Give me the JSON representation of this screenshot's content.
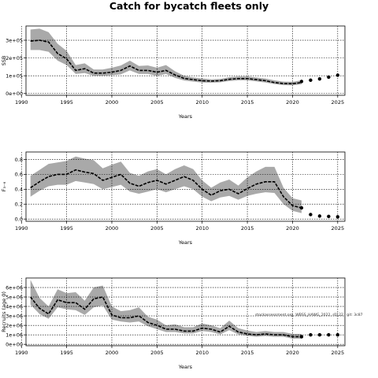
{
  "title": "Catch for bycatch fleets only",
  "annotation": "stockassessment.org, WBSS_HAWG_2022, r0122 , git: 3c87",
  "colors": {
    "band": "#a9a9a9",
    "line": "#000000",
    "grid": "#000000"
  },
  "chart_data": [
    {
      "type": "line",
      "name": "ssb",
      "ylabel": "SSB",
      "xlabel": "Years",
      "xlim": [
        1990.5,
        2025.8
      ],
      "ylim": [
        -10000,
        380000
      ],
      "xticks": [
        1990,
        1995,
        2000,
        2005,
        2010,
        2015,
        2020,
        2025
      ],
      "yticks": [
        0,
        100000,
        200000,
        300000
      ],
      "ytick_labels": [
        "0e+00",
        "1e+05",
        "2e+05",
        "3e+05"
      ],
      "grid": true,
      "x": [
        1991,
        1992,
        1993,
        1994,
        1995,
        1996,
        1997,
        1998,
        1999,
        2000,
        2001,
        2002,
        2003,
        2004,
        2005,
        2006,
        2007,
        2008,
        2009,
        2010,
        2011,
        2012,
        2013,
        2014,
        2015,
        2016,
        2017,
        2018,
        2019,
        2020,
        2021
      ],
      "y": [
        295000,
        300000,
        290000,
        225000,
        195000,
        130000,
        140000,
        115000,
        115000,
        120000,
        130000,
        155000,
        130000,
        130000,
        120000,
        130000,
        105000,
        85000,
        78000,
        72000,
        70000,
        72000,
        80000,
        84000,
        84000,
        78000,
        72000,
        62000,
        56000,
        55000,
        62000
      ],
      "lower": [
        245000,
        245000,
        235000,
        185000,
        160000,
        110000,
        115000,
        100000,
        100000,
        103000,
        108000,
        130000,
        110000,
        110000,
        100000,
        110000,
        88000,
        73000,
        67000,
        62000,
        61000,
        63000,
        70000,
        74000,
        74000,
        68000,
        62000,
        53000,
        47000,
        46000,
        52000
      ],
      "upper": [
        360000,
        365000,
        345000,
        280000,
        240000,
        160000,
        170000,
        135000,
        135000,
        145000,
        158000,
        185000,
        155000,
        158000,
        145000,
        160000,
        125000,
        100000,
        90000,
        85000,
        80000,
        82000,
        92000,
        96000,
        96000,
        90000,
        84000,
        74000,
        67000,
        66000,
        74000
      ],
      "forecast_x": [
        2021,
        2022,
        2023,
        2024,
        2025
      ],
      "forecast_y": [
        68000,
        75000,
        82000,
        92000,
        103000
      ]
    },
    {
      "type": "line",
      "name": "fbar",
      "ylabel": "F₃₋₆",
      "xlabel": "Years",
      "xlim": [
        1990.5,
        2025.8
      ],
      "ylim": [
        -0.03,
        0.9
      ],
      "xticks": [
        1990,
        1995,
        2000,
        2005,
        2010,
        2015,
        2020,
        2025
      ],
      "yticks": [
        0.0,
        0.2,
        0.4,
        0.6,
        0.8
      ],
      "ytick_labels": [
        "0.0",
        "0.2",
        "0.4",
        "0.6",
        "0.8"
      ],
      "grid": true,
      "x": [
        1991,
        1992,
        1993,
        1994,
        1995,
        1996,
        1997,
        1998,
        1999,
        2000,
        2001,
        2002,
        2003,
        2004,
        2005,
        2006,
        2007,
        2008,
        2009,
        2010,
        2011,
        2012,
        2013,
        2014,
        2015,
        2016,
        2017,
        2018,
        2019,
        2020,
        2021
      ],
      "y": [
        0.42,
        0.5,
        0.57,
        0.6,
        0.6,
        0.66,
        0.63,
        0.61,
        0.52,
        0.56,
        0.6,
        0.48,
        0.44,
        0.49,
        0.52,
        0.47,
        0.52,
        0.57,
        0.52,
        0.4,
        0.32,
        0.38,
        0.4,
        0.34,
        0.41,
        0.47,
        0.5,
        0.5,
        0.3,
        0.18,
        0.15
      ],
      "lower": [
        0.3,
        0.38,
        0.44,
        0.46,
        0.46,
        0.51,
        0.49,
        0.47,
        0.4,
        0.43,
        0.46,
        0.37,
        0.34,
        0.37,
        0.4,
        0.36,
        0.4,
        0.44,
        0.4,
        0.3,
        0.24,
        0.29,
        0.31,
        0.26,
        0.31,
        0.34,
        0.36,
        0.35,
        0.2,
        0.11,
        0.08
      ],
      "upper": [
        0.58,
        0.66,
        0.74,
        0.76,
        0.78,
        0.84,
        0.81,
        0.79,
        0.68,
        0.73,
        0.77,
        0.62,
        0.58,
        0.64,
        0.67,
        0.6,
        0.67,
        0.72,
        0.67,
        0.52,
        0.42,
        0.49,
        0.53,
        0.45,
        0.56,
        0.64,
        0.7,
        0.7,
        0.42,
        0.28,
        0.25
      ],
      "forecast_x": [
        2021,
        2022,
        2023,
        2024,
        2025
      ],
      "forecast_y": [
        0.15,
        0.06,
        0.04,
        0.035,
        0.03
      ]
    },
    {
      "type": "line",
      "name": "recruits",
      "ylabel": "Recruits (age 0)",
      "xlabel": "Years",
      "xlim": [
        1990.5,
        2025.8
      ],
      "ylim": [
        -150000,
        7000000
      ],
      "xticks": [
        1990,
        1995,
        2000,
        2005,
        2010,
        2015,
        2020,
        2025
      ],
      "yticks": [
        0,
        1000000,
        2000000,
        3000000,
        4000000,
        5000000,
        6000000
      ],
      "ytick_labels": [
        "0e+00",
        "1e+06",
        "2e+06",
        "3e+06",
        "4e+06",
        "5e+06",
        "6e+06"
      ],
      "grid": true,
      "x": [
        1991,
        1992,
        1993,
        1994,
        1995,
        1996,
        1997,
        1998,
        1999,
        2000,
        2001,
        2002,
        2003,
        2004,
        2005,
        2006,
        2007,
        2008,
        2009,
        2010,
        2011,
        2012,
        2013,
        2014,
        2015,
        2016,
        2017,
        2018,
        2019,
        2020,
        2021
      ],
      "y": [
        5000000,
        3800000,
        3200000,
        4700000,
        4400000,
        4400000,
        3700000,
        4800000,
        5000000,
        3100000,
        2800000,
        2800000,
        3000000,
        2300000,
        2000000,
        1600000,
        1600000,
        1400000,
        1400000,
        1700000,
        1600000,
        1300000,
        1900000,
        1300000,
        1100000,
        1000000,
        1100000,
        1000000,
        1000000,
        800000,
        800000
      ],
      "lower": [
        4200000,
        3200000,
        2700000,
        3900000,
        3700000,
        3600000,
        3100000,
        3900000,
        4100000,
        2600000,
        2400000,
        2300000,
        2400000,
        1900000,
        1600000,
        1300000,
        1300000,
        1150000,
        1150000,
        1400000,
        1300000,
        1050000,
        1500000,
        1050000,
        900000,
        800000,
        880000,
        800000,
        800000,
        600000,
        600000
      ],
      "upper": [
        6800000,
        4900000,
        4000000,
        5800000,
        5400000,
        5500000,
        4600000,
        6000000,
        6200000,
        4000000,
        3500000,
        3600000,
        3900000,
        2900000,
        2600000,
        2000000,
        2100000,
        1800000,
        1800000,
        2200000,
        2000000,
        1700000,
        2500000,
        1700000,
        1450000,
        1300000,
        1400000,
        1300000,
        1300000,
        1100000,
        1100000
      ],
      "forecast_x": [
        2021,
        2022,
        2023,
        2024,
        2025
      ],
      "forecast_y": [
        800000,
        1000000,
        1000000,
        1000000,
        1000000
      ]
    }
  ]
}
